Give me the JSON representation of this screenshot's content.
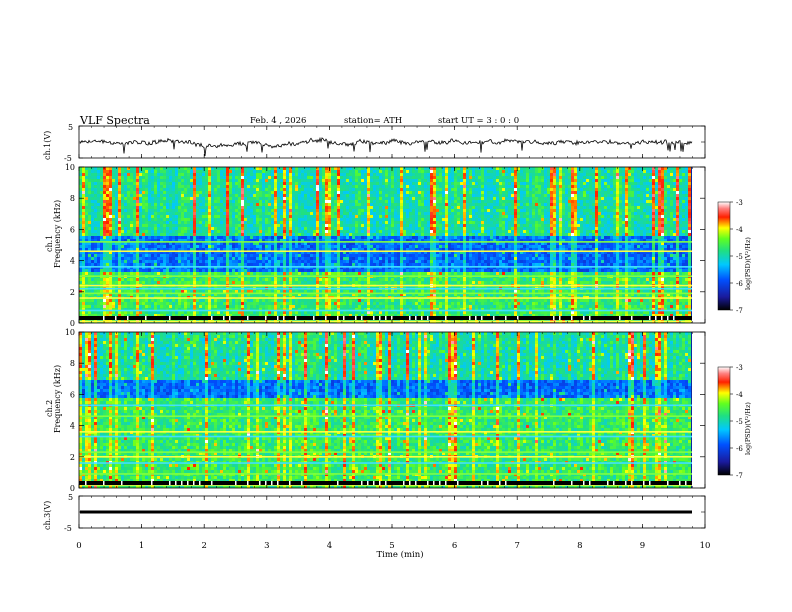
{
  "header": {
    "title": "VLF  Spectra",
    "date": "Feb. 4  , 2026",
    "station": "station= ATH",
    "start": "start  UT  =    3  : 0   : 0"
  },
  "chart_data": [
    {
      "type": "line",
      "name": "ch1-waveform",
      "ylabel": "ch.1(V)",
      "ylim": [
        -5,
        5
      ],
      "yticks": [
        "5",
        "-5"
      ],
      "xlim": [
        0,
        10
      ]
    },
    {
      "type": "heatmap",
      "name": "ch1-spectrogram",
      "ylabel": "ch.1",
      "ylabel2": "Frequency  (kHz)",
      "ylim": [
        0,
        10
      ],
      "yticks": [
        "0",
        "2",
        "4",
        "6",
        "8",
        "10"
      ],
      "xlim": [
        0,
        10
      ],
      "colorbar": {
        "label": "log(PSD)(V²/Hz)",
        "range": [
          -7,
          -3
        ],
        "ticks": [
          "-3",
          "-4",
          "-5",
          "-6",
          "-7"
        ]
      },
      "bands_khz": [
        0.1,
        0.3,
        0.8,
        1.6,
        1.9,
        2.2,
        2.4,
        3.0,
        3.6,
        4.6,
        5.2
      ],
      "low_band_khz": [
        3.2,
        5.5
      ]
    },
    {
      "type": "heatmap",
      "name": "ch2-spectrogram",
      "ylabel": "ch.2",
      "ylabel2": "Frequency  (kHz)",
      "ylim": [
        0,
        10
      ],
      "yticks": [
        "0",
        "2",
        "4",
        "6",
        "8",
        "10"
      ],
      "xlim": [
        0,
        10
      ],
      "colorbar": {
        "label": "log(PSD)(V²/Hz)",
        "range": [
          -7,
          -3
        ],
        "ticks": [
          "-3",
          "-4",
          "-5",
          "-6",
          "-7"
        ]
      },
      "bands_khz": [
        0.2,
        0.9,
        1.6,
        2.0,
        2.3,
        3.3,
        3.6,
        4.6,
        5.3
      ],
      "low_band_khz": [
        5.8,
        7.0
      ]
    },
    {
      "type": "line",
      "name": "ch3-waveform",
      "ylabel": "ch.3(V)",
      "ylim": [
        -5,
        5
      ],
      "yticks": [
        "5",
        "-5"
      ],
      "xlim": [
        0,
        10
      ],
      "level": 0
    }
  ],
  "x_axis": {
    "label": "Time  (min)",
    "ticks": [
      "0",
      "1",
      "2",
      "3",
      "4",
      "5",
      "6",
      "7",
      "8",
      "9",
      "10"
    ],
    "range": [
      0,
      10
    ]
  }
}
